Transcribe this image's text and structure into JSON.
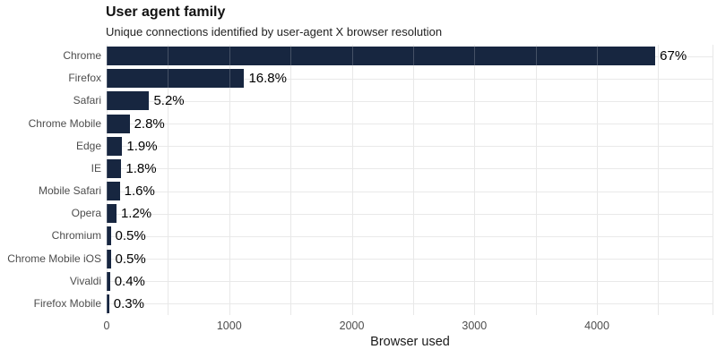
{
  "header": {
    "title": "User agent family",
    "subtitle": "Unique connections identified by user-agent X browser resolution"
  },
  "axes": {
    "x_title": "Browser used",
    "x_tick_labels": [
      "0",
      "1000",
      "2000",
      "3000",
      "4000"
    ],
    "x_tick_values": [
      0,
      1000,
      2000,
      3000,
      4000
    ]
  },
  "colors": {
    "background": "#ffffff",
    "bar": "#172640",
    "grid_vertical": "#e3e3e3",
    "grid_horizontal": "#e9e9e9",
    "grid_over_bar": "rgba(255,255,255,0.2)",
    "axis_text": "#4d4d4d",
    "value_label_text": "#000000"
  },
  "chart_data": {
    "type": "bar",
    "orientation": "horizontal",
    "title": "User agent family",
    "subtitle": "Unique connections identified by user-agent X browser resolution",
    "xlabel": "Browser used",
    "ylabel": "",
    "categories": [
      "Chrome",
      "Firefox",
      "Safari",
      "Chrome Mobile",
      "Edge",
      "IE",
      "Mobile Safari",
      "Opera",
      "Chromium",
      "Chrome Mobile iOS",
      "Vivaldi",
      "Firefox Mobile"
    ],
    "values": [
      4476,
      1122,
      347,
      187,
      127,
      120,
      107,
      80,
      33,
      33,
      27,
      20
    ],
    "bar_labels": [
      "67%",
      "16.8%",
      "5.2%",
      "2.8%",
      "1.9%",
      "1.8%",
      "1.6%",
      "1.2%",
      "0.5%",
      "0.5%",
      "0.4%",
      "0.3%"
    ],
    "xlim": [
      0,
      4950
    ],
    "x_ticks": [
      0,
      1000,
      2000,
      3000,
      4000
    ],
    "grid": {
      "vertical_step": 500,
      "horizontal": "category-centers",
      "right_edge_line": true
    },
    "legend_position": "none"
  }
}
